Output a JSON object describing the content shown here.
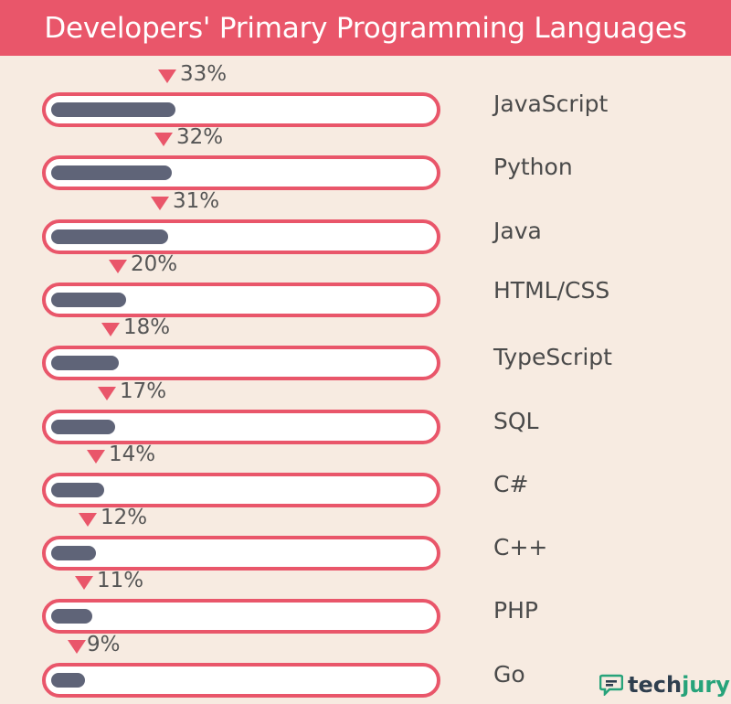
{
  "chart_data": {
    "type": "bar",
    "title": "Developers' Primary Programming Languages",
    "categories": [
      "JavaScript",
      "Python",
      "Java",
      "HTML/CSS",
      "TypeScript",
      "SQL",
      "C#",
      "C++",
      "PHP",
      "Go"
    ],
    "values": [
      33,
      32,
      31,
      20,
      18,
      17,
      14,
      12,
      11,
      9
    ],
    "value_labels": [
      "33%",
      "32%",
      "31%",
      "20%",
      "18%",
      "17%",
      "14%",
      "12%",
      "11%",
      "9%"
    ],
    "orientation": "horizontal",
    "xlim": [
      0,
      100
    ],
    "grid": false,
    "legend": "none",
    "colors": {
      "header": "#e9566a",
      "track_border": "#e9566a",
      "fill": "#5f6478",
      "marker": "#e9566a",
      "background": "#f7ebe1"
    }
  },
  "logo": {
    "text_a": "tech",
    "text_b": "jury",
    "icon": "chat-bubble-icon"
  }
}
